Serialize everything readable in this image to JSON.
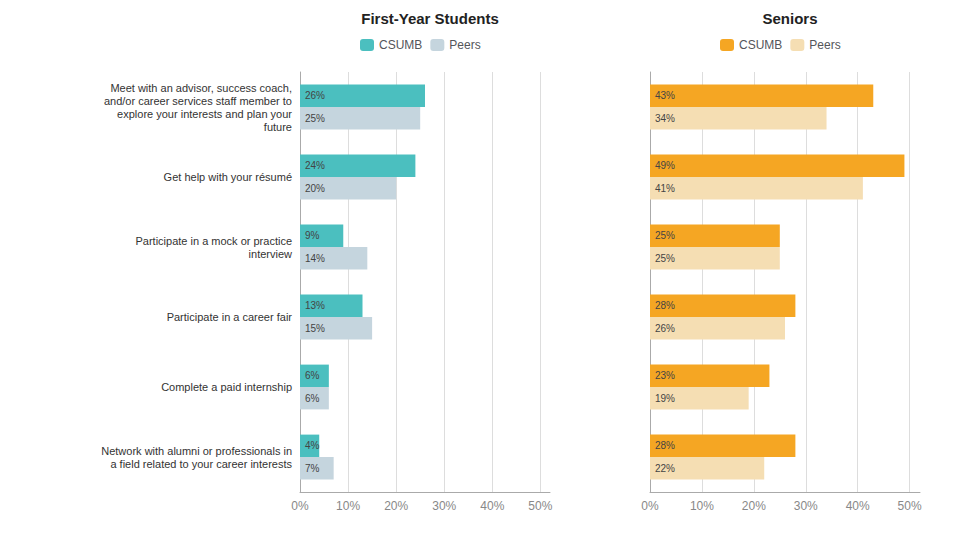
{
  "chart_data": [
    {
      "type": "bar",
      "orientation": "horizontal",
      "title": "First-Year Students",
      "categories": [
        "Meet with an advisor, success coach,\nand/or career services staff member to\nexplore your interests and plan your\nfuture",
        "Get help with your résumé",
        "Participate in a mock or practice\ninterview",
        "Participate in a career fair",
        "Complete a paid internship",
        "Network with alumni or professionals in\na field related to your career interests"
      ],
      "series": [
        {
          "name": "CSUMB",
          "color": "#4bbfbf",
          "values": [
            26,
            24,
            9,
            13,
            6,
            4
          ],
          "value_labels": [
            "26%",
            "24%",
            "9%",
            "13%",
            "6%",
            "4%"
          ]
        },
        {
          "name": "Peers",
          "color": "#c5d5de",
          "values": [
            25,
            20,
            14,
            15,
            6,
            7
          ],
          "value_labels": [
            "25%",
            "20%",
            "14%",
            "15%",
            "6%",
            "7%"
          ]
        }
      ],
      "xlim": [
        0,
        52
      ],
      "xticks": [
        {
          "value": 0,
          "label": "0%"
        },
        {
          "value": 10,
          "label": "10%"
        },
        {
          "value": 20,
          "label": "20%"
        },
        {
          "value": 30,
          "label": "30%"
        },
        {
          "value": 40,
          "label": "40%"
        },
        {
          "value": 50,
          "label": "50%"
        }
      ],
      "grid": true,
      "legend": "top",
      "data_labels": true
    },
    {
      "type": "bar",
      "orientation": "horizontal",
      "title": "Seniors",
      "categories": [
        "Meet with an advisor, success coach,\nand/or career services staff member to\nexplore your interests and plan your\nfuture",
        "Get help with your résumé",
        "Participate in a mock or practice\ninterview",
        "Participate in a career fair",
        "Complete a paid internship",
        "Network with alumni or professionals in\na field related to your career interests"
      ],
      "series": [
        {
          "name": "CSUMB",
          "color": "#f5a623",
          "values": [
            43,
            49,
            25,
            28,
            23,
            28
          ],
          "value_labels": [
            "43%",
            "49%",
            "25%",
            "28%",
            "23%",
            "28%"
          ]
        },
        {
          "name": "Peers",
          "color": "#f5deb3",
          "values": [
            34,
            41,
            25,
            26,
            19,
            22
          ],
          "value_labels": [
            "34%",
            "41%",
            "25%",
            "26%",
            "19%",
            "22%"
          ]
        }
      ],
      "xlim": [
        0,
        52
      ],
      "xticks": [
        {
          "value": 0,
          "label": "0%"
        },
        {
          "value": 10,
          "label": "10%"
        },
        {
          "value": 20,
          "label": "20%"
        },
        {
          "value": 30,
          "label": "30%"
        },
        {
          "value": 40,
          "label": "40%"
        },
        {
          "value": 50,
          "label": "50%"
        }
      ],
      "grid": true,
      "legend": "top",
      "data_labels": true,
      "tick_labels": "x"
    }
  ]
}
